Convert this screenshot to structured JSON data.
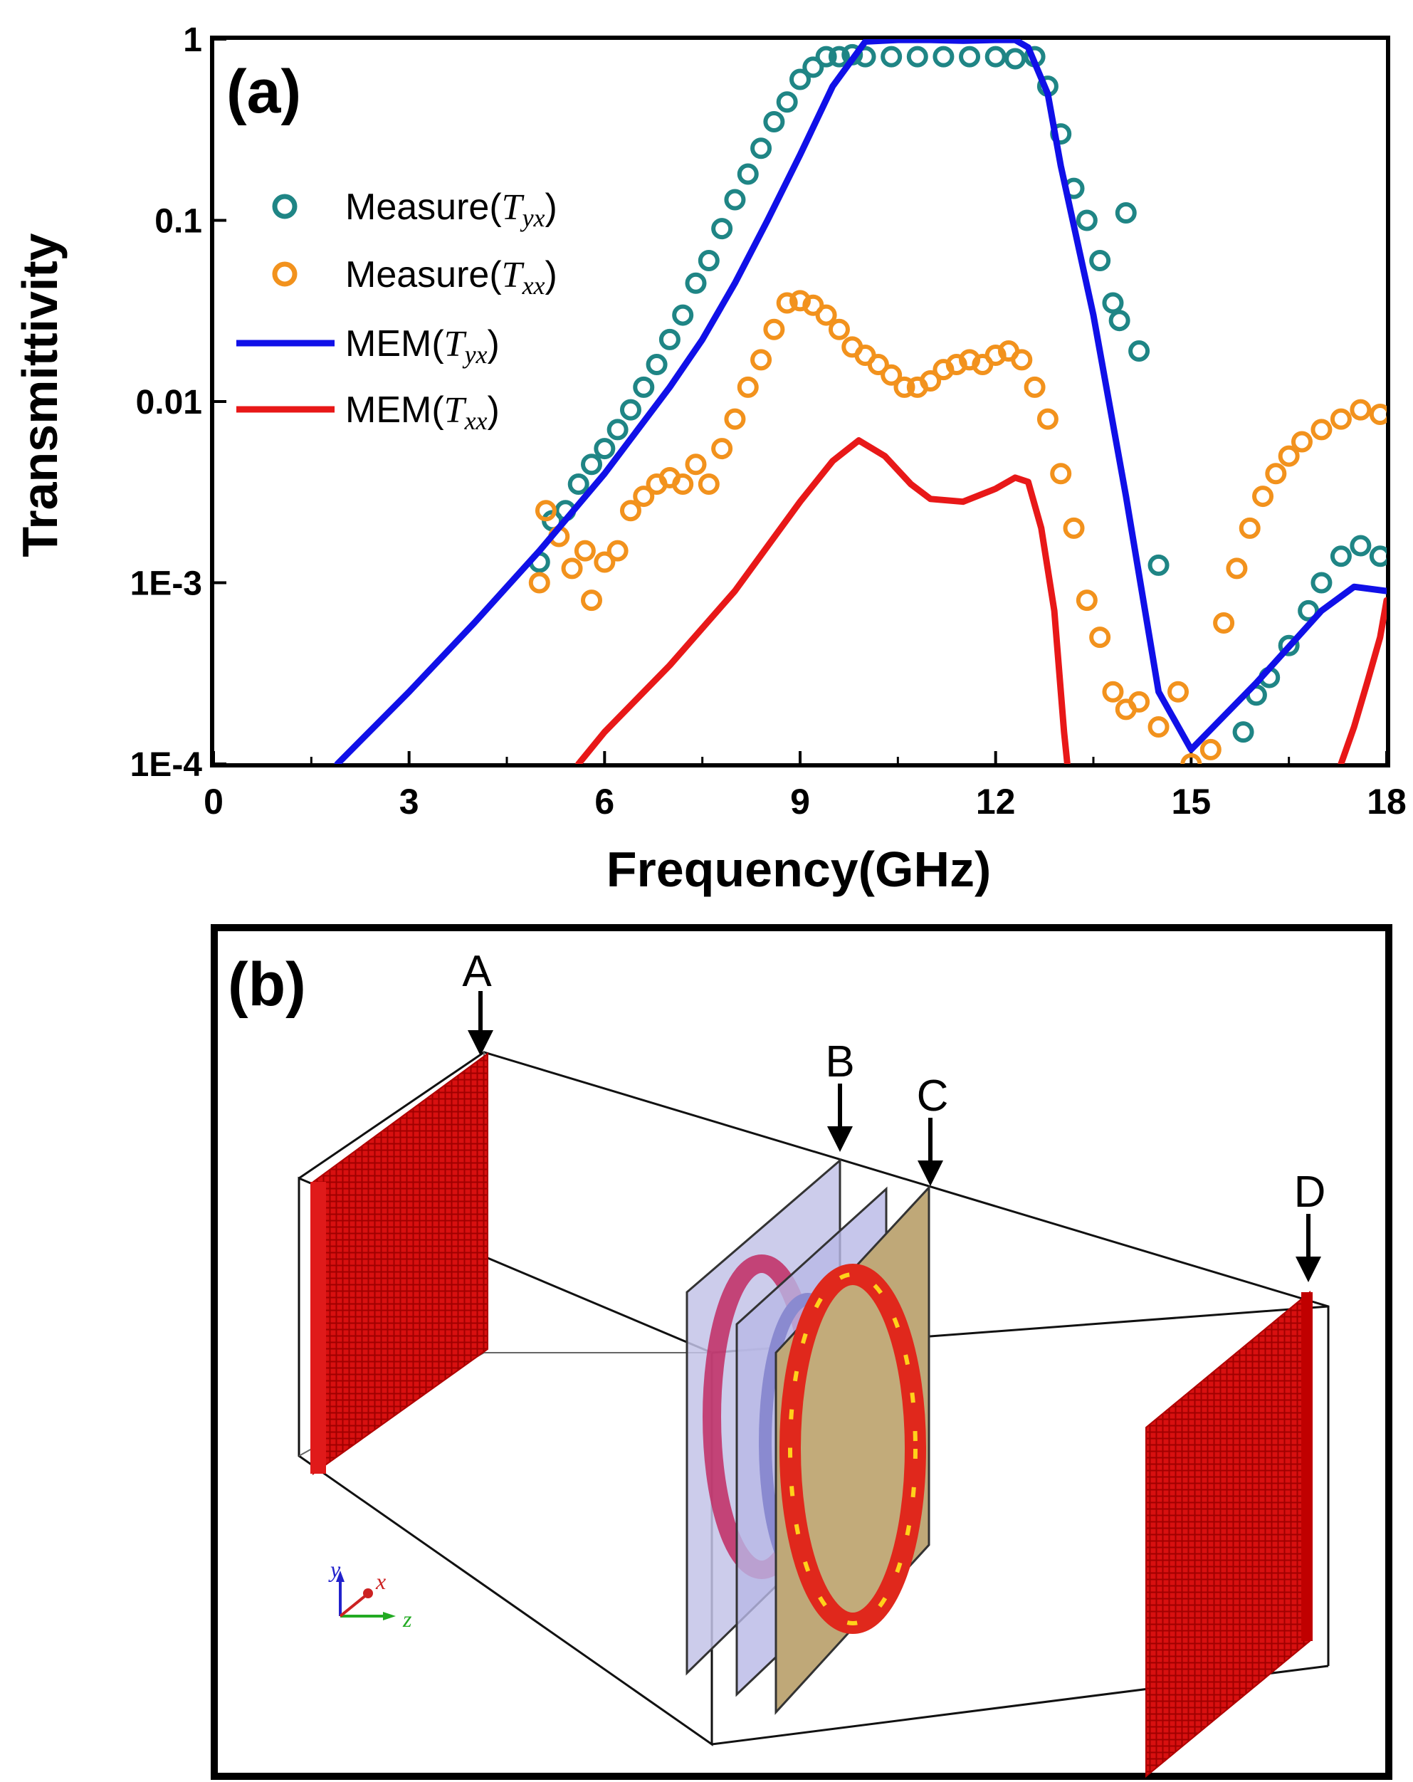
{
  "panel_a": {
    "label": "(a)"
  },
  "panel_b": {
    "label": "(b)",
    "markers": [
      "A",
      "B",
      "C",
      "D"
    ],
    "axes_triad": {
      "y": "y",
      "x": "x",
      "z": "z"
    }
  },
  "chart_data": {
    "type": "line",
    "title": "",
    "xlabel": "Frequency(GHz)",
    "ylabel": "Transmittivity",
    "xlim": [
      0,
      18
    ],
    "ylim": [
      0.0001,
      1
    ],
    "yscale": "log",
    "xticks": [
      "0",
      "3",
      "6",
      "9",
      "12",
      "15",
      "18"
    ],
    "yticks": [
      "1E-4",
      "1E-3",
      "0.01",
      "0.1",
      "1"
    ],
    "legend_position": "top-left",
    "series": [
      {
        "name": "Measure(Tyx)",
        "legend_main": "Measure(",
        "legend_sub": "Tyx",
        "legend_close": ")",
        "kind": "scatter",
        "color": "#1f8585",
        "x": [
          5.0,
          5.2,
          5.4,
          5.6,
          5.8,
          6.0,
          6.2,
          6.4,
          6.6,
          6.8,
          7.0,
          7.2,
          7.4,
          7.6,
          7.8,
          8.0,
          8.2,
          8.4,
          8.6,
          8.8,
          9.0,
          9.2,
          9.4,
          9.6,
          9.8,
          10.0,
          10.4,
          10.8,
          11.2,
          11.6,
          12.0,
          12.3,
          12.6,
          12.8,
          13.0,
          13.2,
          13.4,
          13.6,
          13.8,
          13.9,
          14.0,
          14.2,
          14.5,
          15.8,
          16.0,
          16.2,
          16.5,
          16.8,
          17.0,
          17.3,
          17.6,
          17.9
        ],
        "y": [
          0.0013,
          0.0022,
          0.0025,
          0.0035,
          0.0045,
          0.0055,
          0.007,
          0.009,
          0.012,
          0.016,
          0.022,
          0.03,
          0.045,
          0.06,
          0.09,
          0.13,
          0.18,
          0.25,
          0.35,
          0.45,
          0.6,
          0.7,
          0.8,
          0.8,
          0.82,
          0.8,
          0.8,
          0.8,
          0.8,
          0.8,
          0.8,
          0.78,
          0.8,
          0.55,
          0.3,
          0.15,
          0.1,
          0.06,
          0.035,
          0.028,
          0.11,
          0.019,
          0.00125,
          0.00015,
          0.00024,
          0.0003,
          0.00045,
          0.0007,
          0.001,
          0.0014,
          0.0016,
          0.0014
        ]
      },
      {
        "name": "Measure(Txx)",
        "legend_main": "Measure(",
        "legend_sub": "Txx",
        "legend_close": ")",
        "kind": "scatter",
        "color": "#f2921d",
        "x": [
          5.0,
          5.1,
          5.3,
          5.5,
          5.7,
          5.8,
          6.0,
          6.2,
          6.4,
          6.6,
          6.8,
          7.0,
          7.2,
          7.4,
          7.6,
          7.8,
          8.0,
          8.2,
          8.4,
          8.6,
          8.8,
          9.0,
          9.2,
          9.4,
          9.6,
          9.8,
          10.0,
          10.2,
          10.4,
          10.6,
          10.8,
          11.0,
          11.2,
          11.4,
          11.6,
          11.8,
          12.0,
          12.2,
          12.4,
          12.6,
          12.8,
          13.0,
          13.2,
          13.4,
          13.6,
          13.8,
          14.0,
          14.2,
          14.5,
          14.8,
          15.0,
          15.3,
          15.5,
          15.7,
          15.9,
          16.1,
          16.3,
          16.5,
          16.7,
          17.0,
          17.3,
          17.6,
          17.9
        ],
        "y": [
          0.001,
          0.0025,
          0.0018,
          0.0012,
          0.0015,
          0.0008,
          0.0013,
          0.0015,
          0.0025,
          0.003,
          0.0035,
          0.0038,
          0.0035,
          0.0045,
          0.0035,
          0.0055,
          0.008,
          0.012,
          0.017,
          0.025,
          0.035,
          0.036,
          0.034,
          0.03,
          0.025,
          0.02,
          0.018,
          0.016,
          0.014,
          0.012,
          0.012,
          0.013,
          0.015,
          0.016,
          0.017,
          0.016,
          0.018,
          0.019,
          0.017,
          0.012,
          0.008,
          0.004,
          0.002,
          0.0008,
          0.0005,
          0.00025,
          0.0002,
          0.00022,
          0.00016,
          0.00025,
          0.0001,
          0.00012,
          0.0006,
          0.0012,
          0.002,
          0.003,
          0.004,
          0.005,
          0.006,
          0.007,
          0.008,
          0.009,
          0.0085
        ]
      },
      {
        "name": "MEM(Tyx)",
        "legend_main": "MEM(",
        "legend_sub": "Tyx",
        "legend_close": ")",
        "kind": "line",
        "color": "#1010e8",
        "x": [
          1.9,
          3.0,
          4.0,
          5.0,
          6.0,
          7.0,
          7.5,
          8.0,
          8.5,
          9.0,
          9.5,
          10.0,
          10.5,
          11.0,
          11.5,
          12.0,
          12.3,
          12.5,
          12.8,
          13.0,
          13.5,
          14.0,
          14.5,
          15.0,
          16.0,
          17.0,
          17.5,
          18.0
        ],
        "y": [
          0.0001,
          0.00025,
          0.0006,
          0.0015,
          0.004,
          0.012,
          0.022,
          0.045,
          0.1,
          0.23,
          0.55,
          0.97,
          0.99,
          0.99,
          0.98,
          0.99,
          0.99,
          0.9,
          0.5,
          0.2,
          0.03,
          0.003,
          0.00025,
          0.00012,
          0.00028,
          0.0007,
          0.00095,
          0.0009
        ]
      },
      {
        "name": "MEM(Txx)",
        "legend_main": "MEM(",
        "legend_sub": "Txx",
        "legend_close": ")",
        "kind": "line",
        "color": "#e81818",
        "x": [
          5.6,
          6.0,
          7.0,
          8.0,
          9.0,
          9.5,
          9.9,
          10.3,
          10.7,
          11.0,
          11.5,
          12.0,
          12.3,
          12.5,
          12.7,
          12.9,
          13.05,
          13.1
        ],
        "y": [
          0.0001,
          0.00015,
          0.00035,
          0.0009,
          0.0028,
          0.0047,
          0.0061,
          0.005,
          0.0035,
          0.0029,
          0.0028,
          0.0033,
          0.0038,
          0.0036,
          0.002,
          0.0007,
          0.00015,
          0.0001
        ]
      },
      {
        "name": "MEM(Txx)-high",
        "legend_main": "",
        "legend_sub": "",
        "legend_close": "",
        "kind": "line",
        "color": "#e81818",
        "x": [
          17.3,
          17.5,
          17.7,
          17.9,
          18.0
        ],
        "y": [
          0.0001,
          0.00016,
          0.00028,
          0.0005,
          0.0008
        ]
      }
    ]
  }
}
